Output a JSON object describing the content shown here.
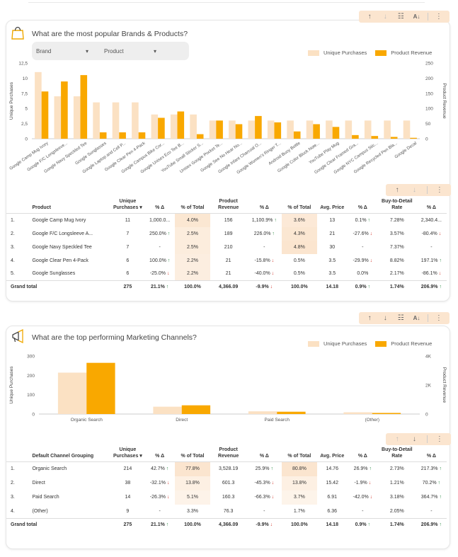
{
  "colors": {
    "light_bar": "#fbe1c3",
    "dark_bar": "#f9a800",
    "highlight": "#fbe5cf",
    "up": "#2e8b45",
    "down": "#d23a2f"
  },
  "brands": {
    "title": "What are the most popular Brands & Products?",
    "filters": [
      {
        "label": "Brand"
      },
      {
        "label": "Product"
      }
    ],
    "legend": {
      "series_a": "Unique Purchases",
      "series_b": "Product Revenue"
    },
    "chart_data": {
      "type": "bar",
      "title": "What are the most popular Brands & Products?",
      "ylabel": "Unique Purchases",
      "y2label": "Product Revenue",
      "ylim": [
        0,
        12.5
      ],
      "y2lim": [
        0,
        250
      ],
      "yticks": [
        "0",
        "2,5",
        "5",
        "7,5",
        "10",
        "12,5"
      ],
      "y2ticks": [
        "0",
        "50",
        "100",
        "150",
        "200",
        "250"
      ],
      "categories": [
        "Google Camp Mug Ivory",
        "Google F/C Longsleeve...",
        "Google Navy Speckled Tee",
        "Google Sunglasses",
        "Google Laptop and Cell P...",
        "Google Clear Pen 4-Pack",
        "Google Campus Bike Cor...",
        "Google Unisex Eco Tee B...",
        "YouTube Small Sticker S...",
        "Unisex Google Pocket Te...",
        "Google See No Hear No...",
        "Google Infant Charcoal O...",
        "Google Women's Ringer T...",
        "Android Buoy Bottle",
        "Google Color Block Note...",
        "YouTube Play Mug",
        "Google Clear Framed Gra...",
        "Google NYC Campus Stic...",
        "Google Recycled Pen Bla...",
        "Google Decal"
      ],
      "series": [
        {
          "name": "Unique Purchases",
          "axis": "left",
          "values": [
            11,
            7,
            7,
            6,
            6,
            6,
            4,
            4,
            4,
            3,
            3,
            3,
            3,
            3,
            3,
            3,
            3,
            3,
            3,
            3
          ]
        },
        {
          "name": "Product Revenue",
          "axis": "right",
          "values": [
            156,
            189,
            210,
            21,
            21,
            21,
            69,
            90,
            15,
            60,
            48,
            75,
            54,
            24,
            48,
            39,
            12,
            9,
            6,
            3
          ]
        }
      ]
    },
    "table": {
      "headers": [
        "Product",
        "Unique Purchases ▾",
        "% Δ",
        "% of Total",
        "Product Revenue",
        "% Δ",
        "% of Total",
        "Avg. Price",
        "% Δ",
        "Buy-to-Detail Rate",
        "% Δ"
      ],
      "rows": [
        {
          "n": "1.",
          "name": "Google Camp Mug Ivory",
          "up": "11",
          "d1": "1,000.0...",
          "d1t": "",
          "pt1": "4.0%",
          "pt1h": 0.9,
          "rev": "156",
          "d2": "1,100.9%",
          "d2t": "up",
          "pt2": "3.6%",
          "pt2h": 0.75,
          "avg": "13",
          "d3": "0.1%",
          "d3t": "up",
          "btd": "7.28%",
          "d4": "2,340.4...",
          "d4t": ""
        },
        {
          "n": "2.",
          "name": "Google F/C Longsleeve A...",
          "up": "7",
          "d1": "250.0%",
          "d1t": "up",
          "pt1": "2.5%",
          "pt1h": 0.55,
          "rev": "189",
          "d2": "226.0%",
          "d2t": "up",
          "pt2": "4.3%",
          "pt2h": 0.9,
          "avg": "21",
          "d3": "-27.6%",
          "d3t": "dn",
          "btd": "3.57%",
          "d4": "-80.4%",
          "d4t": "dn"
        },
        {
          "n": "3.",
          "name": "Google Navy Speckled Tee",
          "up": "7",
          "d1": "-",
          "d1t": "",
          "pt1": "2.5%",
          "pt1h": 0.55,
          "rev": "210",
          "d2": "-",
          "d2t": "",
          "pt2": "4.8%",
          "pt2h": 1.0,
          "avg": "30",
          "d3": "-",
          "d3t": "",
          "btd": "7.37%",
          "d4": "-",
          "d4t": ""
        },
        {
          "n": "4.",
          "name": "Google Clear Pen 4-Pack",
          "up": "6",
          "d1": "100.0%",
          "d1t": "up",
          "pt1": "2.2%",
          "pt1h": 0.45,
          "rev": "21",
          "d2": "-15.8%",
          "d2t": "dn",
          "pt2": "0.5%",
          "pt2h": 0,
          "avg": "3.5",
          "d3": "-29.9%",
          "d3t": "dn",
          "btd": "8.82%",
          "d4": "197.1%",
          "d4t": "up"
        },
        {
          "n": "5.",
          "name": "Google Sunglasses",
          "up": "6",
          "d1": "-25.0%",
          "d1t": "dn",
          "pt1": "2.2%",
          "pt1h": 0.45,
          "rev": "21",
          "d2": "-40.0%",
          "d2t": "dn",
          "pt2": "0.5%",
          "pt2h": 0,
          "avg": "3.5",
          "d3": "0.0%",
          "d3t": "",
          "btd": "2.17%",
          "d4": "-86.1%",
          "d4t": "dn"
        }
      ],
      "total": {
        "label": "Grand total",
        "up": "275",
        "d1": "21.1%",
        "d1t": "up",
        "pt1": "100.0%",
        "rev": "4,366.09",
        "d2": "-9.9%",
        "d2t": "dn",
        "pt2": "100.0%",
        "avg": "14.18",
        "d3": "0.9%",
        "d3t": "up",
        "btd": "1.74%",
        "d4": "206.9%",
        "d4t": "up"
      }
    }
  },
  "channels": {
    "title": "What are the top performing Marketing Channels?",
    "legend": {
      "series_a": "Unique Purchases",
      "series_b": "Product Revenue"
    },
    "chart_data": {
      "type": "bar",
      "title": "What are the top performing Marketing Channels?",
      "ylabel": "Unique Purchases",
      "y2label": "Product Revenue",
      "ylim": [
        0,
        300
      ],
      "y2lim": [
        0,
        4000
      ],
      "yticks": [
        "0",
        "100",
        "200",
        "300"
      ],
      "y2ticks": [
        "0",
        "2K",
        "4K"
      ],
      "categories": [
        "Organic Search",
        "Direct",
        "Paid Search",
        "(Other)"
      ],
      "series": [
        {
          "name": "Unique Purchases",
          "axis": "left",
          "values": [
            214,
            38,
            14,
            9
          ]
        },
        {
          "name": "Product Revenue",
          "axis": "right",
          "values": [
            3528.19,
            601.3,
            160.3,
            76.3
          ]
        }
      ]
    },
    "table": {
      "headers": [
        "Default Channel Grouping",
        "Unique Purchases ▾",
        "% Δ",
        "% of Total",
        "Product Revenue",
        "% Δ",
        "% of Total",
        "Avg. Price",
        "% Δ",
        "Buy-to-Detail Rate",
        "% Δ"
      ],
      "rows": [
        {
          "n": "1.",
          "name": "Organic Search",
          "up": "214",
          "d1": "42.7%",
          "d1t": "up",
          "pt1": "77.8%",
          "pt1h": 1.0,
          "rev": "3,528.19",
          "d2": "25.9%",
          "d2t": "up",
          "pt2": "80.8%",
          "pt2h": 1.0,
          "avg": "14.76",
          "d3": "26.9%",
          "d3t": "up",
          "btd": "2.73%",
          "d4": "217.3%",
          "d4t": "up"
        },
        {
          "n": "2.",
          "name": "Direct",
          "up": "38",
          "d1": "-32.1%",
          "d1t": "dn",
          "pt1": "13.8%",
          "pt1h": 0.35,
          "rev": "601.3",
          "d2": "-45.3%",
          "d2t": "dn",
          "pt2": "13.8%",
          "pt2h": 0.35,
          "avg": "15.42",
          "d3": "-1.9%",
          "d3t": "dn",
          "btd": "1.21%",
          "d4": "70.2%",
          "d4t": "up"
        },
        {
          "n": "3.",
          "name": "Paid Search",
          "up": "14",
          "d1": "-26.3%",
          "d1t": "dn",
          "pt1": "5.1%",
          "pt1h": 0.15,
          "rev": "160.3",
          "d2": "-66.3%",
          "d2t": "dn",
          "pt2": "3.7%",
          "pt2h": 0.12,
          "avg": "6.91",
          "d3": "-42.0%",
          "d3t": "dn",
          "btd": "3.18%",
          "d4": "364.7%",
          "d4t": "up"
        },
        {
          "n": "4.",
          "name": "(Other)",
          "up": "9",
          "d1": "-",
          "d1t": "",
          "pt1": "3.3%",
          "pt1h": 0,
          "rev": "76.3",
          "d2": "-",
          "d2t": "",
          "pt2": "1.7%",
          "pt2h": 0,
          "avg": "6.36",
          "d3": "-",
          "d3t": "",
          "btd": "2.05%",
          "d4": "-",
          "d4t": ""
        }
      ],
      "total": {
        "label": "Grand total",
        "up": "275",
        "d1": "21.1%",
        "d1t": "up",
        "pt1": "100.0%",
        "rev": "4,366.09",
        "d2": "-9.9%",
        "d2t": "dn",
        "pt2": "100.0%",
        "avg": "14.18",
        "d3": "0.9%",
        "d3t": "up",
        "btd": "1.74%",
        "d4": "206.9%",
        "d4t": "up"
      }
    }
  }
}
